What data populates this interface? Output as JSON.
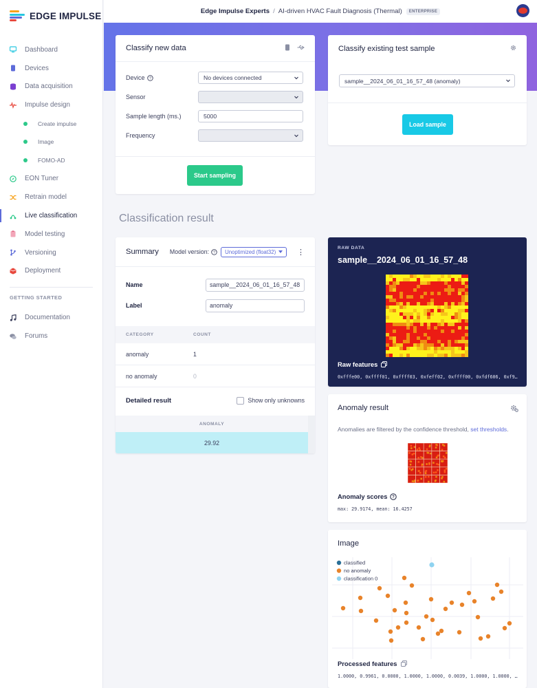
{
  "brand": {
    "name": "EDGE IMPULSE"
  },
  "sidebar": {
    "items": [
      {
        "label": "Dashboard",
        "icon": "monitor-icon"
      },
      {
        "label": "Devices",
        "icon": "chip-icon"
      },
      {
        "label": "Data acquisition",
        "icon": "database-icon"
      },
      {
        "label": "Impulse design",
        "icon": "pulse-icon"
      },
      {
        "label": "Create impulse",
        "sub": true
      },
      {
        "label": "Image",
        "sub": true
      },
      {
        "label": "FOMO-AD",
        "sub": true
      },
      {
        "label": "EON Tuner",
        "icon": "compass-icon"
      },
      {
        "label": "Retrain model",
        "icon": "shuffle-icon"
      },
      {
        "label": "Live classification",
        "icon": "network-icon",
        "active": true
      },
      {
        "label": "Model testing",
        "icon": "clipboard-icon"
      },
      {
        "label": "Versioning",
        "icon": "branch-icon"
      },
      {
        "label": "Deployment",
        "icon": "box-icon"
      }
    ],
    "getting_started_heading": "GETTING STARTED",
    "getting_started": [
      {
        "label": "Documentation",
        "icon": "music-note-icon"
      },
      {
        "label": "Forums",
        "icon": "chat-icon"
      }
    ]
  },
  "topbar": {
    "owner": "Edge Impulse Experts",
    "separator": "/",
    "project": "AI-driven HVAC Fault Diagnosis (Thermal)",
    "badge": "ENTERPRISE"
  },
  "classify_new": {
    "title": "Classify new data",
    "device_label": "Device",
    "device_value": "No devices connected",
    "sensor_label": "Sensor",
    "sample_length_label": "Sample length (ms.)",
    "sample_length_value": "5000",
    "frequency_label": "Frequency",
    "start_button": "Start sampling"
  },
  "classify_existing": {
    "title": "Classify existing test sample",
    "sample_value": "sample__2024_06_01_16_57_48 (anomaly)",
    "load_button": "Load sample"
  },
  "result_title": "Classification result",
  "summary": {
    "title": "Summary",
    "model_version_label": "Model version:",
    "model_version_value": "Unoptimized (float32)",
    "name_label": "Name",
    "name_value": "sample__2024_06_01_16_57_48",
    "label_label": "Label",
    "label_value": "anomaly",
    "col_category": "CATEGORY",
    "col_count": "COUNT",
    "rows": [
      {
        "category": "anomaly",
        "count": "1"
      },
      {
        "category": "no anomaly",
        "count": "0"
      }
    ],
    "detailed_title": "Detailed result",
    "show_unknowns_label": "Show only unknowns",
    "detail_col": "ANOMALY",
    "detail_value": "29.92"
  },
  "raw_data": {
    "heading": "RAW DATA",
    "sample_name": "sample__2024_06_01_16_57_48",
    "features_label": "Raw features",
    "features_value": "0xfffe00, 0xffff01, 0xffff03, 0xfeff02, 0xffff00, 0xfdf606, 0xf9…"
  },
  "anomaly": {
    "title": "Anomaly result",
    "note": "Anomalies are filtered by the confidence threshold,",
    "note_link": "set thresholds",
    "note_end": ".",
    "scores_label": "Anomaly scores",
    "scores_value": "max: 29.9174, mean: 16.4257"
  },
  "image_card": {
    "title": "Image",
    "legend": [
      {
        "name": "classified",
        "color": "#2a6f97"
      },
      {
        "name": "no anomaly",
        "color": "#e8832a"
      },
      {
        "name": "classification 0",
        "color": "#8fd3f0"
      }
    ],
    "processed_label": "Processed features",
    "processed_value": "1.0000, 0.9961, 0.0000, 1.0000, 1.0000, 0.0039, 1.0000, 1.0000, …"
  },
  "colors": {
    "accent": "#5d6bd9",
    "green": "#2bc98a",
    "cyan": "#18c9e6",
    "navy": "#1c2452"
  }
}
